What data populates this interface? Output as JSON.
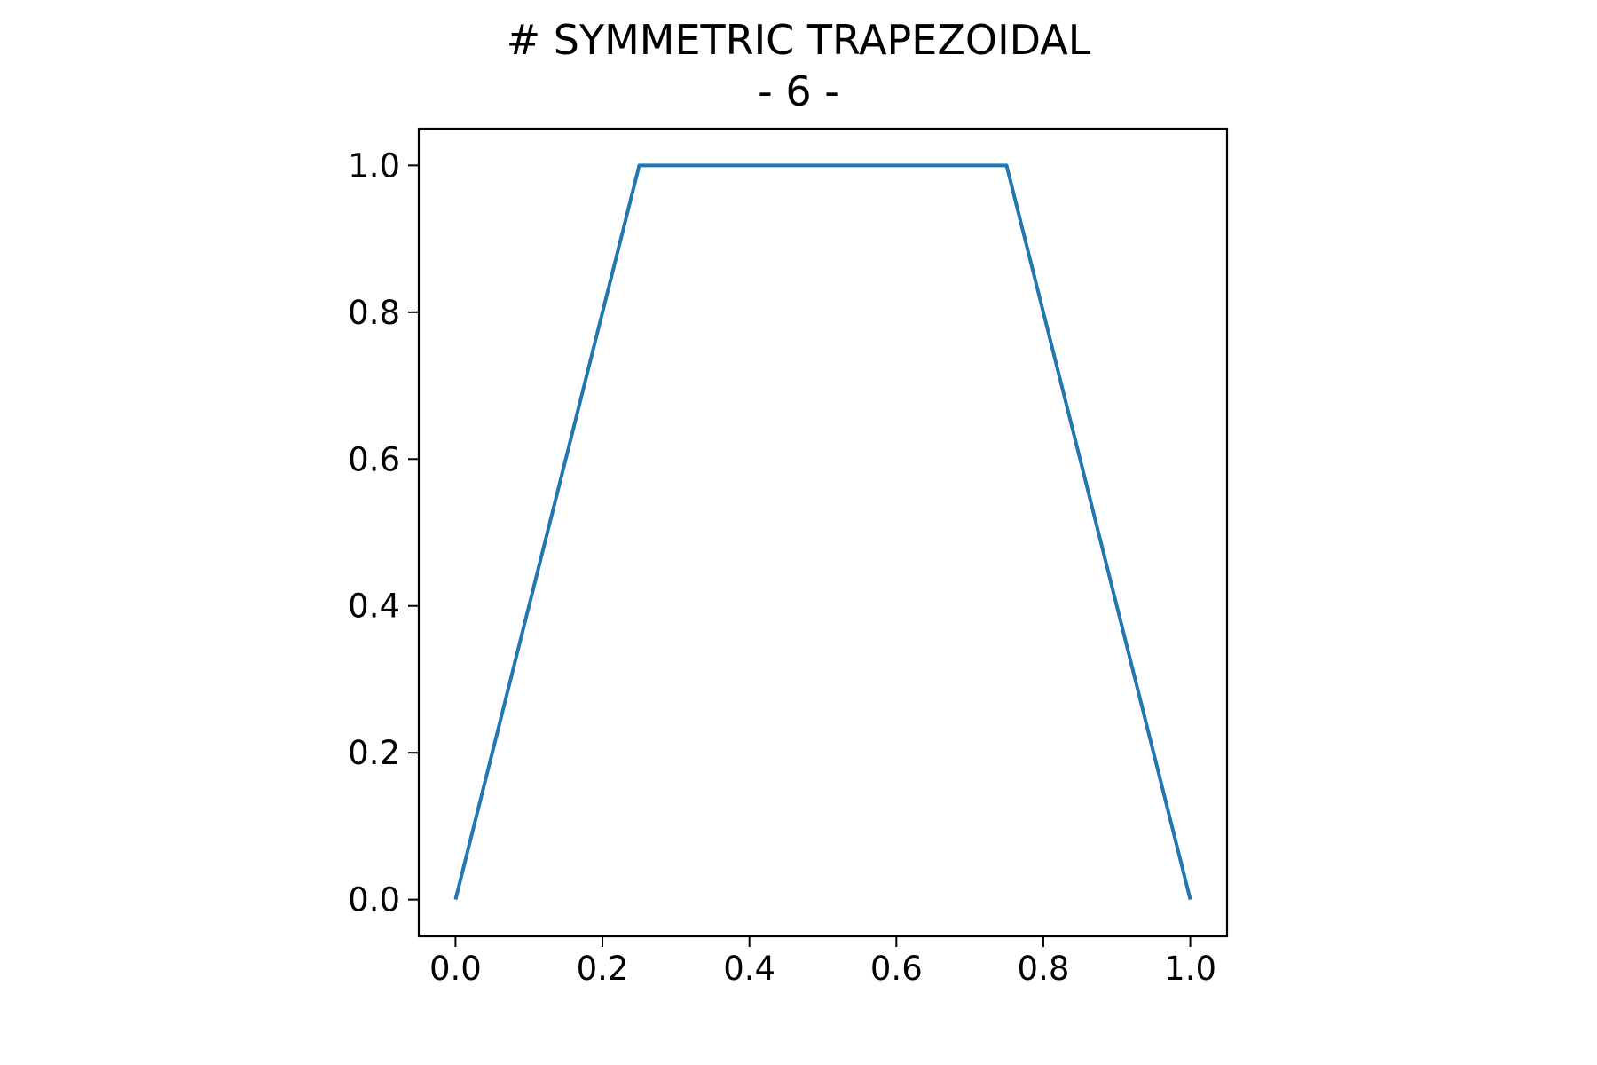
{
  "chart_data": {
    "type": "line",
    "title": [
      "# SYMMETRIC TRAPEZOIDAL",
      "- 6 -"
    ],
    "xlabel": "",
    "ylabel": "",
    "xlim": [
      -0.05,
      1.05
    ],
    "ylim": [
      -0.05,
      1.05
    ],
    "x_ticks": [
      "0.0",
      "0.2",
      "0.4",
      "0.6",
      "0.8",
      "1.0"
    ],
    "y_ticks": [
      "0.0",
      "0.2",
      "0.4",
      "0.6",
      "0.8",
      "1.0"
    ],
    "grid": false,
    "series": [
      {
        "color": "#1f77b4",
        "x": [
          0.0,
          0.25,
          0.75,
          1.0
        ],
        "y": [
          0.0,
          1.0,
          1.0,
          0.0
        ]
      }
    ]
  }
}
